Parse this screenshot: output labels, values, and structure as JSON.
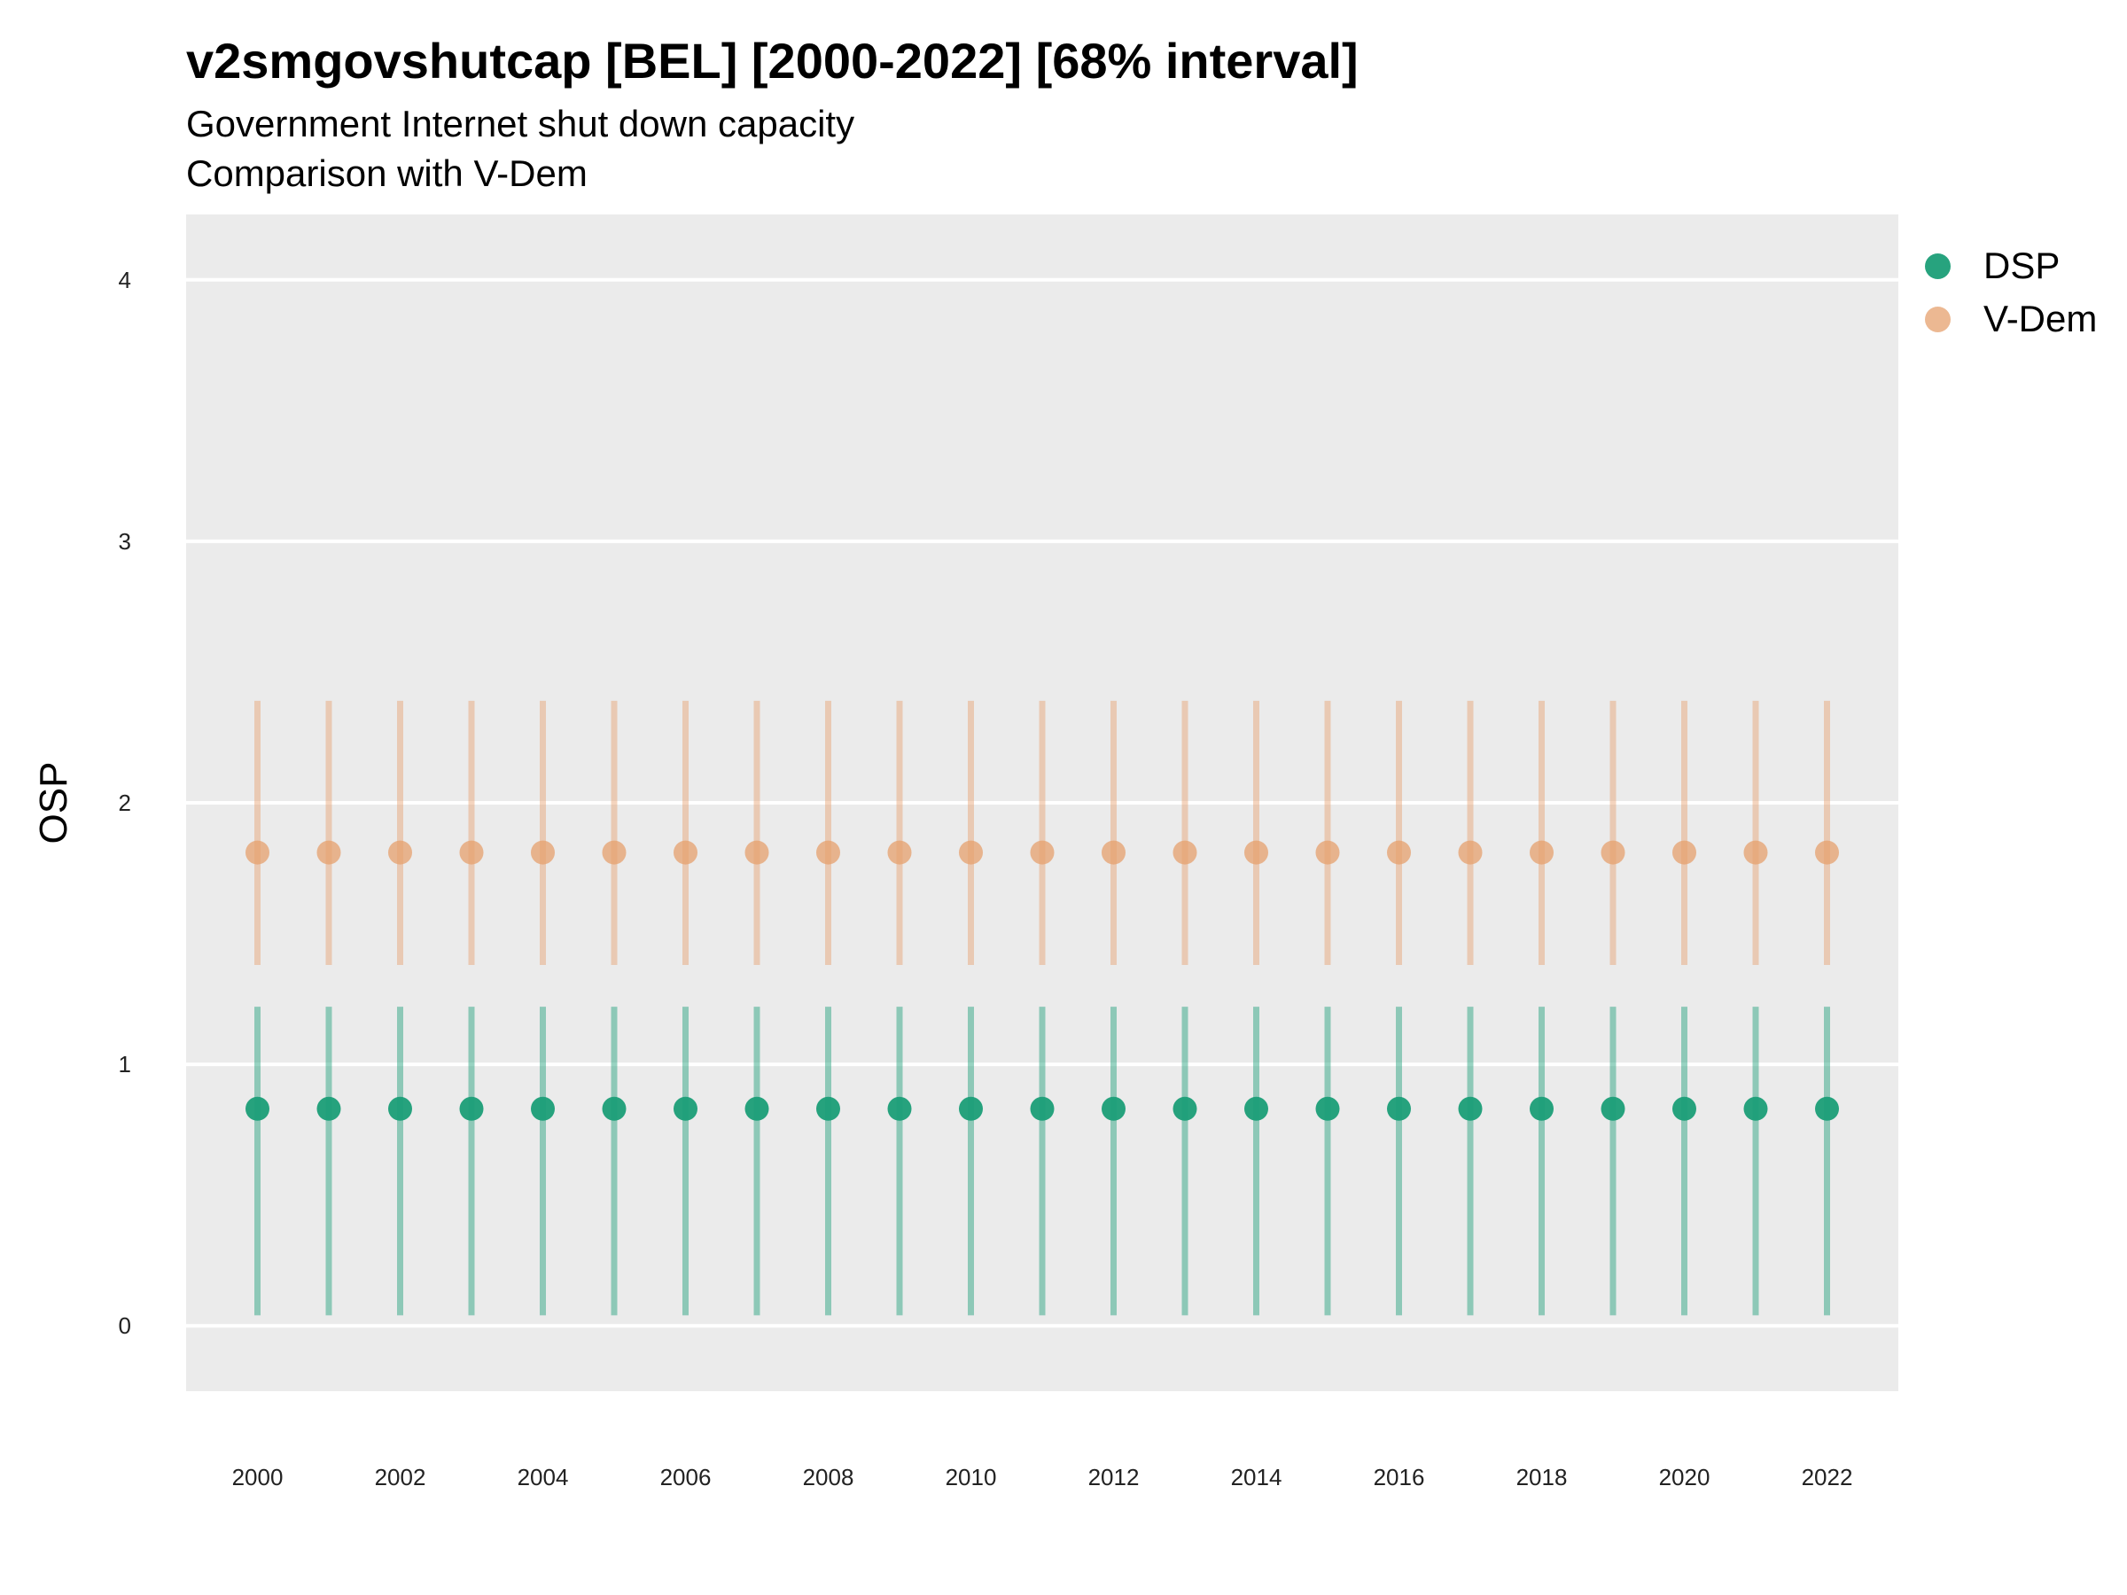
{
  "title": "v2smgovshutcap [BEL] [2000-2022] [68% interval]",
  "subtitle_lines": [
    "Government Internet shut down capacity",
    "Comparison with V-Dem"
  ],
  "chart_data": {
    "type": "scatter",
    "ylabel": "OSP",
    "xlabel": "",
    "x": [
      2000,
      2001,
      2002,
      2003,
      2004,
      2005,
      2006,
      2007,
      2008,
      2009,
      2010,
      2011,
      2012,
      2013,
      2014,
      2015,
      2016,
      2017,
      2018,
      2019,
      2020,
      2021,
      2022
    ],
    "x_ticks": [
      2000,
      2002,
      2004,
      2006,
      2008,
      2010,
      2012,
      2014,
      2016,
      2018,
      2020,
      2022
    ],
    "y_ticks": [
      0,
      1,
      2,
      3,
      4
    ],
    "ylim": [
      -0.25,
      4.25
    ],
    "xlim": [
      1999.0,
      2023.0
    ],
    "grid": true,
    "legend_position": "right",
    "series": [
      {
        "name": "DSP",
        "color": "#1b9e77",
        "values": [
          0.83,
          0.83,
          0.83,
          0.83,
          0.83,
          0.83,
          0.83,
          0.83,
          0.83,
          0.83,
          0.83,
          0.83,
          0.83,
          0.83,
          0.83,
          0.83,
          0.83,
          0.83,
          0.83,
          0.83,
          0.83,
          0.83,
          0.83
        ],
        "lower": [
          0.04,
          0.04,
          0.04,
          0.04,
          0.04,
          0.04,
          0.04,
          0.04,
          0.04,
          0.04,
          0.04,
          0.04,
          0.04,
          0.04,
          0.04,
          0.04,
          0.04,
          0.04,
          0.04,
          0.04,
          0.04,
          0.04,
          0.04
        ],
        "upper": [
          1.22,
          1.22,
          1.22,
          1.22,
          1.22,
          1.22,
          1.22,
          1.22,
          1.22,
          1.22,
          1.22,
          1.22,
          1.22,
          1.22,
          1.22,
          1.22,
          1.22,
          1.22,
          1.22,
          1.22,
          1.22,
          1.22,
          1.22
        ]
      },
      {
        "name": "V-Dem",
        "color": "#e6a06e",
        "values": [
          1.81,
          1.81,
          1.81,
          1.81,
          1.81,
          1.81,
          1.81,
          1.81,
          1.81,
          1.81,
          1.81,
          1.81,
          1.81,
          1.81,
          1.81,
          1.81,
          1.81,
          1.81,
          1.81,
          1.81,
          1.81,
          1.81,
          1.81
        ],
        "lower": [
          1.38,
          1.38,
          1.38,
          1.38,
          1.38,
          1.38,
          1.38,
          1.38,
          1.38,
          1.38,
          1.38,
          1.38,
          1.38,
          1.38,
          1.38,
          1.38,
          1.38,
          1.38,
          1.38,
          1.38,
          1.38,
          1.38,
          1.38
        ],
        "upper": [
          2.39,
          2.39,
          2.39,
          2.39,
          2.39,
          2.39,
          2.39,
          2.39,
          2.39,
          2.39,
          2.39,
          2.39,
          2.39,
          2.39,
          2.39,
          2.39,
          2.39,
          2.39,
          2.39,
          2.39,
          2.39,
          2.39,
          2.39
        ]
      }
    ]
  }
}
